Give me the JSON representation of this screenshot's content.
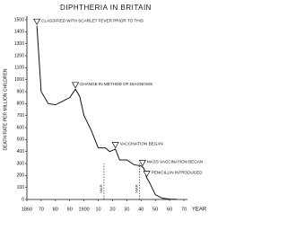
{
  "chart_data": {
    "type": "line",
    "title": "DIPHTHERIA IN BRITAIN",
    "y_label": "DEATH RATE PER MILLION CHILDREN",
    "x_label": "YEAR",
    "x": [
      1867,
      1870,
      1875,
      1880,
      1885,
      1890,
      1894,
      1897,
      1900,
      1905,
      1910,
      1915,
      1918,
      1922,
      1925,
      1930,
      1935,
      1940,
      1942,
      1944,
      1946,
      1950,
      1955,
      1960,
      1965
    ],
    "values": [
      1450,
      900,
      800,
      790,
      820,
      850,
      920,
      860,
      700,
      580,
      430,
      430,
      400,
      420,
      330,
      330,
      290,
      280,
      260,
      180,
      140,
      40,
      10,
      3,
      1
    ],
    "color": "#111111",
    "xlim": [
      1860,
      1970
    ],
    "ylim": [
      0,
      1500
    ],
    "xticks": [
      1860,
      {
        "value": 1870,
        "label": "70"
      },
      {
        "value": 1880,
        "label": "80"
      },
      {
        "value": 1890,
        "label": "90"
      },
      1900,
      {
        "value": 1910,
        "label": "10"
      },
      {
        "value": 1920,
        "label": "20"
      },
      {
        "value": 1930,
        "label": "30"
      },
      {
        "value": 1940,
        "label": "40"
      },
      {
        "value": 1950,
        "label": "50"
      },
      {
        "value": 1960,
        "label": "60"
      },
      {
        "value": 1970,
        "label": "70"
      }
    ],
    "yticks": [
      0,
      100,
      200,
      300,
      400,
      500,
      600,
      700,
      800,
      900,
      1000,
      1100,
      1200,
      1300,
      1400,
      1500
    ],
    "annotations": [
      {
        "text": "CLASSIFIED WITH SCARLET FEVER PRIOR TO THIS",
        "x": 1867,
        "y": 1450
      },
      {
        "text": "CHANGE IN METHOD OF DIAGNOSIS",
        "x": 1894,
        "y": 920
      },
      {
        "text": "VACCINATION BEGAN",
        "x": 1922,
        "y": 420
      },
      {
        "text": "MASS VACCINATION BEGAN",
        "x": 1941,
        "y": 270
      },
      {
        "text": "PENICILLIN INTRODUCED",
        "x": 1944,
        "y": 180
      }
    ],
    "war_markers": [
      {
        "text": "WAR",
        "x": 1914
      },
      {
        "text": "WAR",
        "x": 1939
      }
    ],
    "grid": false
  }
}
